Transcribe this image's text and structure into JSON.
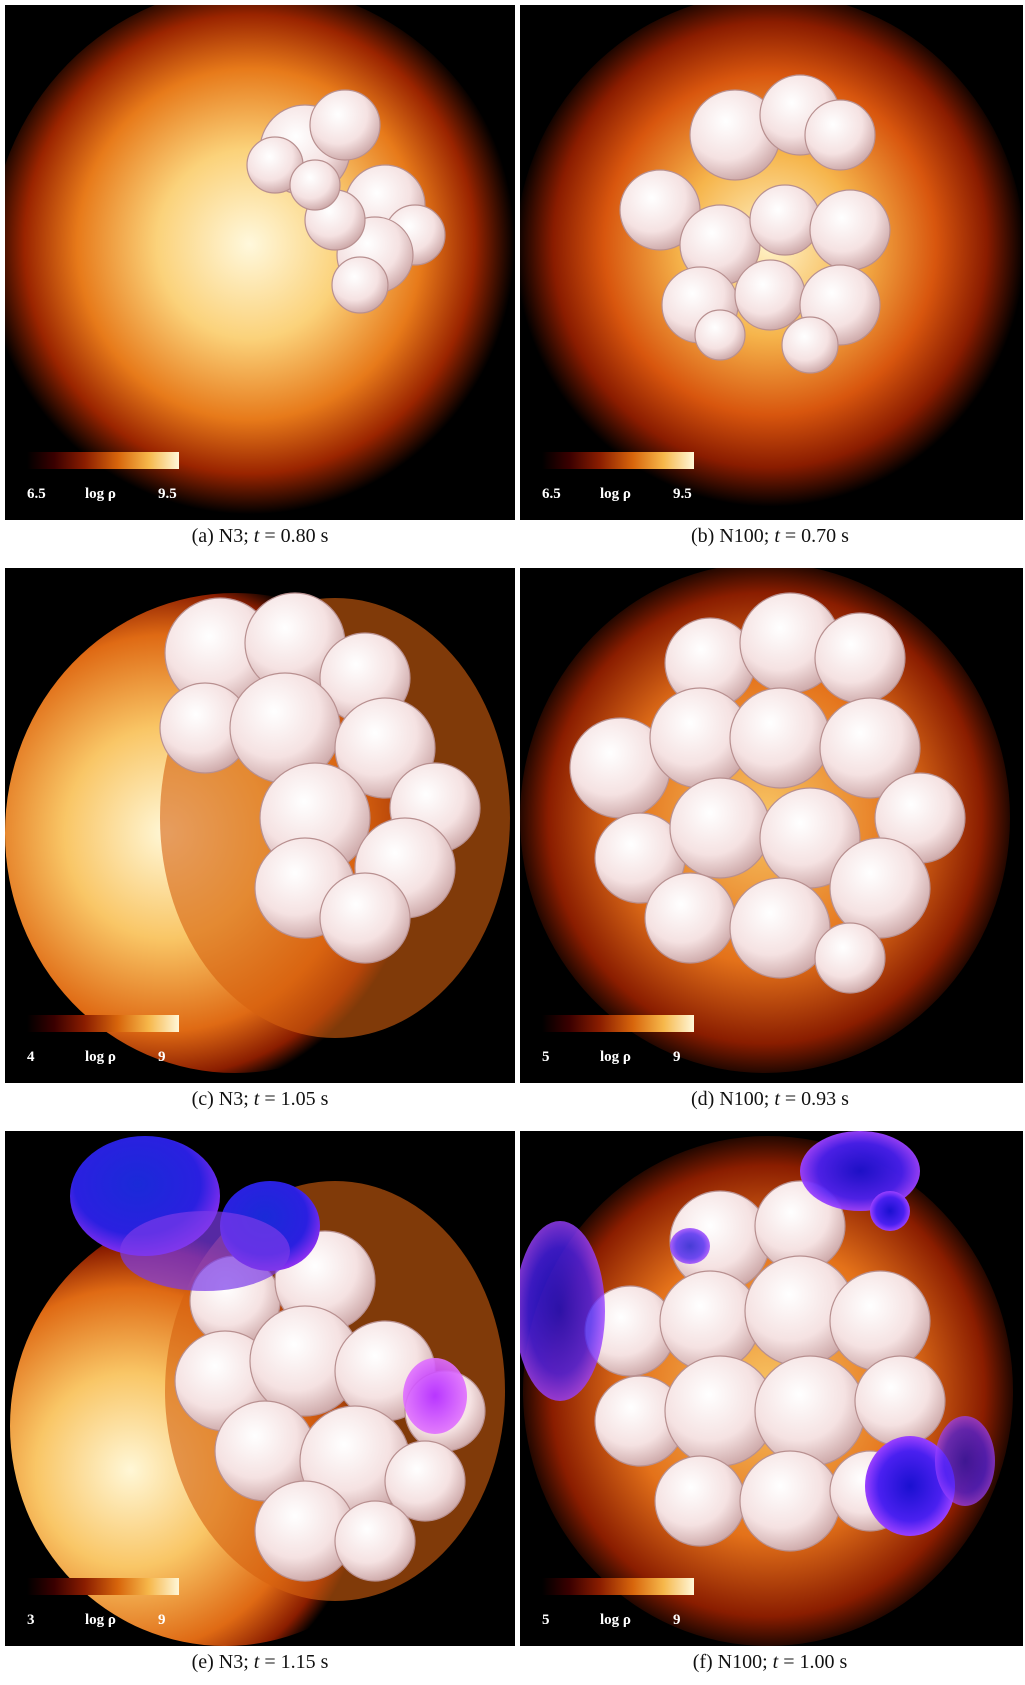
{
  "colors": {
    "background": "#000000",
    "density_hot": "#fff6d6",
    "density_mid": "#e8781b",
    "density_cool": "#5a0b00",
    "flame": "#f7e6e6",
    "outer_ash": "#3a1cff"
  },
  "colorbar_label": "log ρ",
  "panels": [
    {
      "id": "a",
      "cbar_min": "6.5",
      "cbar_max": "9.5",
      "caption_prefix": "(a)  N3; ",
      "caption_t": "t",
      "caption_suffix": " = 0.80 s"
    },
    {
      "id": "b",
      "cbar_min": "6.5",
      "cbar_max": "9.5",
      "caption_prefix": "(b)  N100; ",
      "caption_t": "t",
      "caption_suffix": " = 0.70 s"
    },
    {
      "id": "c",
      "cbar_min": "4",
      "cbar_max": "9",
      "caption_prefix": "(c)  N3; ",
      "caption_t": "t",
      "caption_suffix": " = 1.05 s"
    },
    {
      "id": "d",
      "cbar_min": "5",
      "cbar_max": "9",
      "caption_prefix": "(d)  N100; ",
      "caption_t": "t",
      "caption_suffix": " = 0.93 s"
    },
    {
      "id": "e",
      "cbar_min": "3",
      "cbar_max": "9",
      "caption_prefix": "(e)  N3; ",
      "caption_t": "t",
      "caption_suffix": " = 1.15 s"
    },
    {
      "id": "f",
      "cbar_min": "5",
      "cbar_max": "9",
      "caption_prefix": "(f)  N100; ",
      "caption_t": "t",
      "caption_suffix": " = 1.00 s"
    }
  ]
}
